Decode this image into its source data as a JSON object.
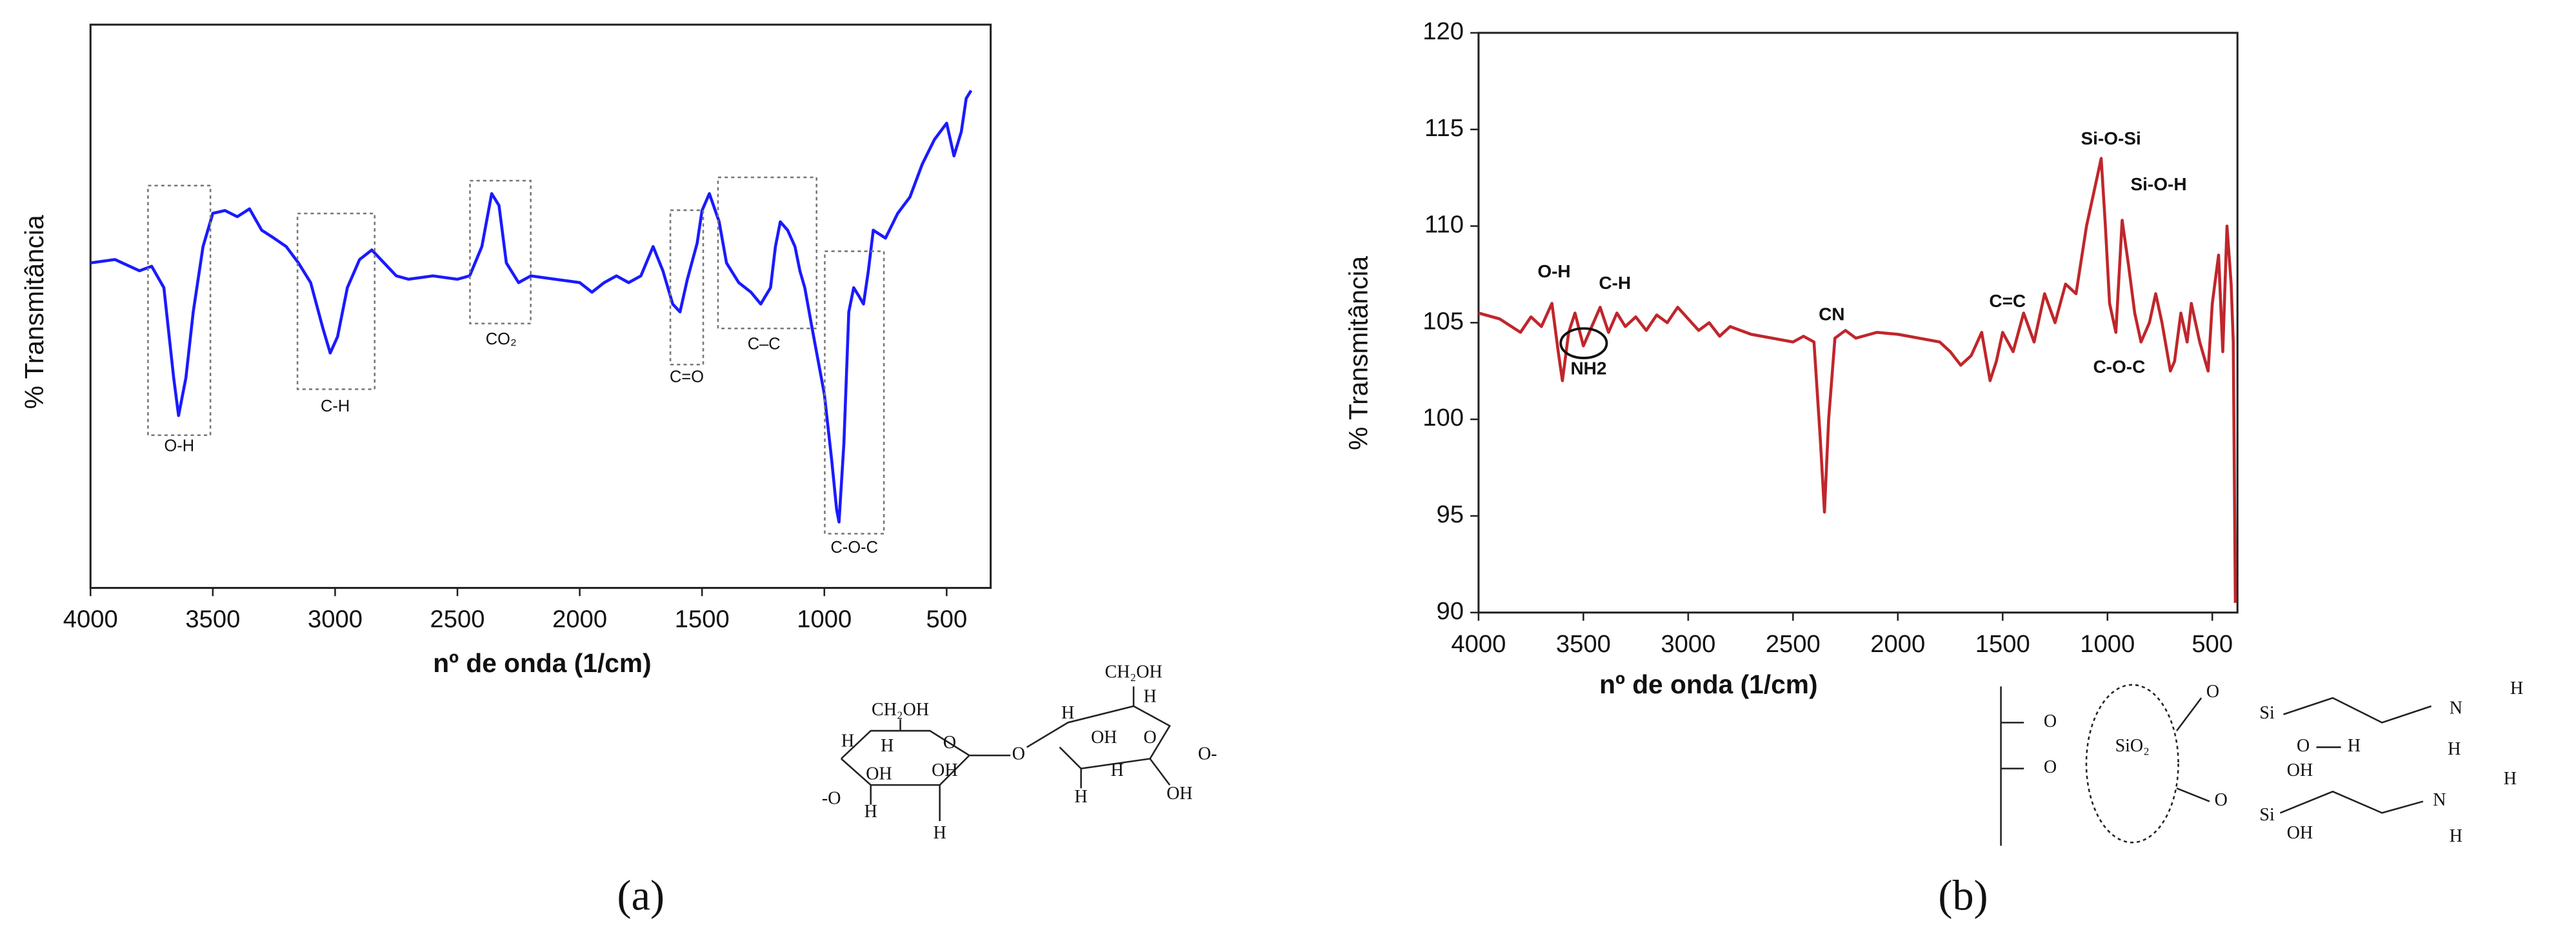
{
  "chart_data": [
    {
      "type": "line",
      "label": "(a)",
      "xlabel": "nº de onda (1/cm)",
      "ylabel": "% Transmitância",
      "color": "#1a1aff",
      "xlim": [
        4000,
        320
      ],
      "xticks": [
        4000,
        3500,
        3000,
        2500,
        2000,
        1500,
        1000,
        500
      ],
      "ylim": [
        0,
        100
      ],
      "x": [
        4000,
        3900,
        3800,
        3750,
        3700,
        3660,
        3640,
        3610,
        3580,
        3540,
        3500,
        3450,
        3400,
        3350,
        3300,
        3250,
        3200,
        3150,
        3100,
        3050,
        3020,
        2990,
        2950,
        2900,
        2850,
        2800,
        2750,
        2700,
        2600,
        2500,
        2450,
        2400,
        2360,
        2330,
        2300,
        2250,
        2200,
        2100,
        2000,
        1950,
        1900,
        1850,
        1800,
        1750,
        1700,
        1660,
        1620,
        1590,
        1560,
        1520,
        1500,
        1470,
        1430,
        1400,
        1350,
        1300,
        1260,
        1220,
        1200,
        1180,
        1150,
        1120,
        1100,
        1080,
        1050,
        1000,
        970,
        950,
        940,
        920,
        900,
        880,
        860,
        840,
        820,
        800,
        750,
        700,
        650,
        600,
        550,
        500,
        470,
        440,
        420,
        400
      ],
      "values": [
        57.7,
        58.3,
        56.3,
        57.1,
        53.3,
        37.3,
        30.6,
        37.3,
        49.0,
        60.6,
        66.5,
        67.0,
        65.9,
        67.3,
        63.5,
        62.1,
        60.6,
        57.7,
        54.2,
        46.1,
        41.7,
        44.6,
        53.3,
        58.3,
        60.0,
        57.7,
        55.4,
        54.8,
        55.4,
        54.8,
        55.4,
        60.6,
        70.0,
        67.9,
        57.7,
        54.2,
        55.4,
        54.8,
        54.2,
        52.5,
        54.2,
        55.4,
        54.2,
        55.4,
        60.6,
        56.3,
        50.4,
        49.0,
        54.8,
        61.2,
        67.0,
        70.0,
        65.0,
        57.7,
        54.2,
        52.5,
        50.4,
        53.3,
        60.6,
        65.0,
        63.5,
        60.6,
        56.3,
        53.3,
        46.1,
        34.4,
        22.7,
        14.0,
        11.7,
        25.7,
        49.0,
        53.3,
        51.9,
        50.4,
        56.3,
        63.5,
        62.1,
        66.5,
        69.4,
        75.2,
        79.6,
        82.5,
        76.7,
        81.0,
        86.9,
        88.3
      ],
      "annotations": [
        "O-H",
        "C-H",
        "CO₂",
        "C=O",
        "C–C",
        "C-O-C"
      ]
    },
    {
      "type": "line",
      "label": "(b)",
      "xlabel": "nº de onda (1/cm)",
      "ylabel": "% Transmitância",
      "color": "#c0262b",
      "xlim": [
        4000,
        380
      ],
      "xticks": [
        4000,
        3500,
        3000,
        2500,
        2000,
        1500,
        1000,
        500
      ],
      "ylim": [
        90,
        120
      ],
      "yticks": [
        90,
        95,
        100,
        105,
        110,
        115,
        120
      ],
      "x": [
        4000,
        3900,
        3800,
        3750,
        3700,
        3650,
        3620,
        3600,
        3570,
        3540,
        3500,
        3460,
        3420,
        3380,
        3340,
        3300,
        3250,
        3200,
        3150,
        3100,
        3050,
        3000,
        2950,
        2900,
        2850,
        2800,
        2700,
        2600,
        2500,
        2450,
        2400,
        2370,
        2350,
        2330,
        2300,
        2250,
        2200,
        2100,
        2000,
        1900,
        1800,
        1750,
        1700,
        1650,
        1600,
        1560,
        1530,
        1500,
        1450,
        1400,
        1350,
        1300,
        1250,
        1200,
        1150,
        1100,
        1060,
        1030,
        1010,
        990,
        960,
        930,
        900,
        870,
        840,
        800,
        770,
        740,
        700,
        680,
        650,
        620,
        600,
        560,
        520,
        500,
        470,
        450,
        430,
        410,
        400,
        390
      ],
      "values": [
        105.5,
        105.2,
        104.5,
        105.3,
        104.8,
        106.0,
        103.5,
        102.0,
        104.5,
        105.5,
        103.8,
        104.8,
        105.8,
        104.5,
        105.5,
        104.8,
        105.3,
        104.6,
        105.4,
        105.0,
        105.8,
        105.2,
        104.6,
        105.0,
        104.3,
        104.8,
        104.4,
        104.2,
        104.0,
        104.3,
        104.0,
        99.0,
        95.2,
        100.0,
        104.2,
        104.6,
        104.2,
        104.5,
        104.4,
        104.2,
        104.0,
        103.5,
        102.8,
        103.3,
        104.5,
        102.0,
        103.0,
        104.5,
        103.5,
        105.5,
        104.0,
        106.5,
        105.0,
        107.0,
        106.5,
        110.0,
        112.0,
        113.5,
        110.0,
        106.0,
        104.5,
        110.3,
        108.0,
        105.5,
        104.0,
        105.0,
        106.5,
        105.0,
        102.5,
        103.0,
        105.5,
        104.0,
        106.0,
        104.0,
        102.5,
        106.0,
        108.5,
        103.5,
        110.0,
        107.0,
        104.0,
        90.5
      ],
      "annotations": [
        "O-H",
        "C-H",
        "NH2",
        "CN",
        "C=C",
        "Si-O-Si",
        "Si-O-H",
        "C-O-C"
      ]
    }
  ],
  "structures": [
    {
      "labels": [
        "CH₂OH",
        "CH₂OH",
        "O",
        "O",
        "O",
        "-O",
        "O-",
        "OH",
        "OH",
        "OH",
        "OH",
        "H",
        "H",
        "H",
        "H",
        "H",
        "H",
        "H",
        "H"
      ]
    },
    {
      "labels": [
        "O",
        "O",
        "SiO₂",
        "O",
        "Si",
        "O",
        "H",
        "N",
        "H",
        "H",
        "OH",
        "O",
        "Si",
        "OH",
        "N",
        "H",
        "H"
      ]
    }
  ]
}
